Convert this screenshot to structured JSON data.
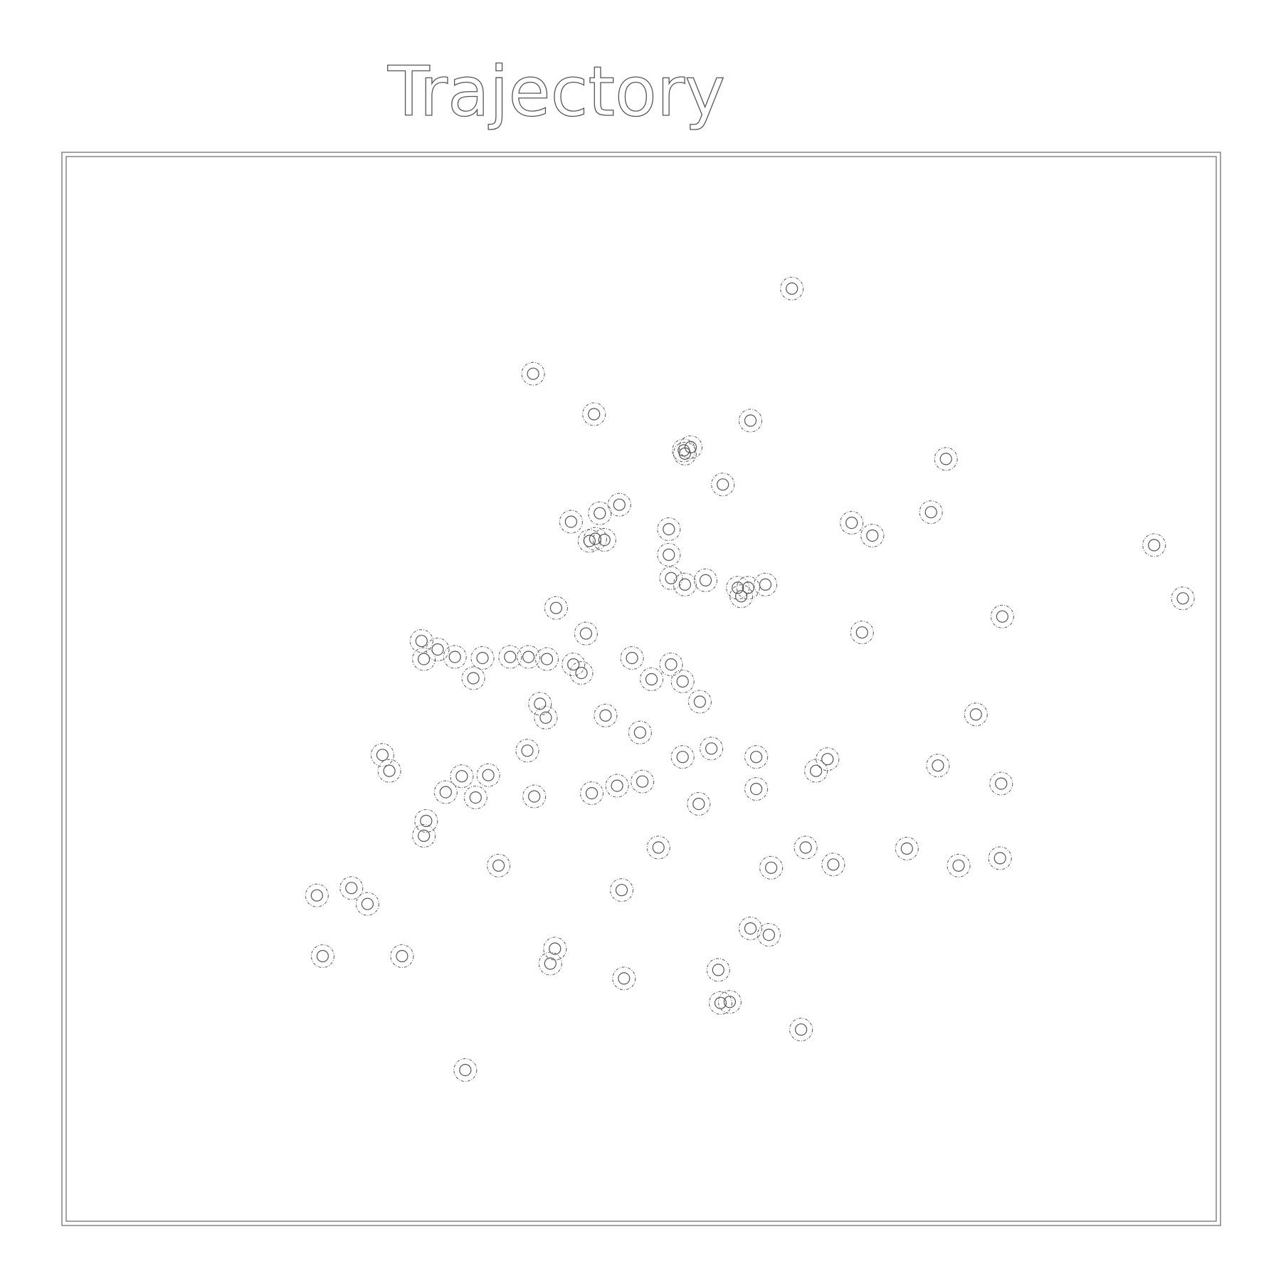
{
  "chart_data": {
    "type": "scatter",
    "title": "Trajectory",
    "xlabel": "",
    "ylabel": "",
    "xlim": [
      0,
      100
    ],
    "ylim": [
      0,
      100
    ],
    "grid": false,
    "legend": "none",
    "axes_ticks_visible": false,
    "colors": {
      "marker_stroke": "#666666",
      "frame": "#666666",
      "background": "#ffffff"
    },
    "points": [
      {
        "x": 63.1,
        "y": 87.6
      },
      {
        "x": 40.6,
        "y": 79.6
      },
      {
        "x": 45.9,
        "y": 75.8
      },
      {
        "x": 59.5,
        "y": 75.2
      },
      {
        "x": 53.7,
        "y": 72.4
      },
      {
        "x": 54.3,
        "y": 72.7
      },
      {
        "x": 53.8,
        "y": 72.1
      },
      {
        "x": 76.5,
        "y": 71.6
      },
      {
        "x": 57.1,
        "y": 69.2
      },
      {
        "x": 48.1,
        "y": 67.3
      },
      {
        "x": 43.9,
        "y": 65.7
      },
      {
        "x": 46.4,
        "y": 66.5
      },
      {
        "x": 46.0,
        "y": 64.1
      },
      {
        "x": 45.5,
        "y": 63.9
      },
      {
        "x": 46.8,
        "y": 64.0
      },
      {
        "x": 52.4,
        "y": 65.0
      },
      {
        "x": 52.4,
        "y": 62.6
      },
      {
        "x": 68.3,
        "y": 65.6
      },
      {
        "x": 70.1,
        "y": 64.4
      },
      {
        "x": 75.2,
        "y": 66.6
      },
      {
        "x": 94.6,
        "y": 63.5
      },
      {
        "x": 52.6,
        "y": 60.4
      },
      {
        "x": 53.8,
        "y": 59.8
      },
      {
        "x": 55.6,
        "y": 60.2
      },
      {
        "x": 59.3,
        "y": 59.5
      },
      {
        "x": 58.7,
        "y": 58.7
      },
      {
        "x": 58.4,
        "y": 59.5
      },
      {
        "x": 60.8,
        "y": 59.8
      },
      {
        "x": 42.6,
        "y": 57.6
      },
      {
        "x": 97.1,
        "y": 58.5
      },
      {
        "x": 81.4,
        "y": 56.8
      },
      {
        "x": 45.2,
        "y": 55.2
      },
      {
        "x": 69.2,
        "y": 55.3
      },
      {
        "x": 31.1,
        "y": 52.8
      },
      {
        "x": 32.3,
        "y": 53.7
      },
      {
        "x": 30.9,
        "y": 54.5
      },
      {
        "x": 33.8,
        "y": 53.0
      },
      {
        "x": 36.2,
        "y": 52.9
      },
      {
        "x": 35.4,
        "y": 51.0
      },
      {
        "x": 38.6,
        "y": 53.0
      },
      {
        "x": 40.2,
        "y": 53.0
      },
      {
        "x": 41.8,
        "y": 52.8
      },
      {
        "x": 44.1,
        "y": 52.3
      },
      {
        "x": 44.8,
        "y": 51.5
      },
      {
        "x": 49.2,
        "y": 52.9
      },
      {
        "x": 52.6,
        "y": 52.3
      },
      {
        "x": 50.9,
        "y": 50.9
      },
      {
        "x": 53.6,
        "y": 50.7
      },
      {
        "x": 55.1,
        "y": 48.8
      },
      {
        "x": 41.2,
        "y": 48.6
      },
      {
        "x": 41.7,
        "y": 47.3
      },
      {
        "x": 46.9,
        "y": 47.5
      },
      {
        "x": 79.1,
        "y": 47.6
      },
      {
        "x": 49.9,
        "y": 45.9
      },
      {
        "x": 40.1,
        "y": 44.2
      },
      {
        "x": 56.1,
        "y": 44.4
      },
      {
        "x": 27.5,
        "y": 43.8
      },
      {
        "x": 28.1,
        "y": 42.3
      },
      {
        "x": 53.6,
        "y": 43.6
      },
      {
        "x": 60.0,
        "y": 43.6
      },
      {
        "x": 66.2,
        "y": 43.4
      },
      {
        "x": 65.2,
        "y": 42.3
      },
      {
        "x": 75.8,
        "y": 42.8
      },
      {
        "x": 36.7,
        "y": 41.9
      },
      {
        "x": 34.4,
        "y": 41.8
      },
      {
        "x": 33.0,
        "y": 40.3
      },
      {
        "x": 35.6,
        "y": 39.8
      },
      {
        "x": 40.7,
        "y": 39.9
      },
      {
        "x": 45.7,
        "y": 40.2
      },
      {
        "x": 47.9,
        "y": 40.9
      },
      {
        "x": 50.1,
        "y": 41.3
      },
      {
        "x": 60.0,
        "y": 40.6
      },
      {
        "x": 81.3,
        "y": 41.1
      },
      {
        "x": 55.0,
        "y": 39.2
      },
      {
        "x": 31.3,
        "y": 37.6
      },
      {
        "x": 31.1,
        "y": 36.2
      },
      {
        "x": 51.5,
        "y": 35.1
      },
      {
        "x": 64.3,
        "y": 35.1
      },
      {
        "x": 73.1,
        "y": 35.0
      },
      {
        "x": 37.6,
        "y": 33.4
      },
      {
        "x": 61.3,
        "y": 33.2
      },
      {
        "x": 66.7,
        "y": 33.5
      },
      {
        "x": 77.6,
        "y": 33.4
      },
      {
        "x": 81.2,
        "y": 34.1
      },
      {
        "x": 21.8,
        "y": 30.6
      },
      {
        "x": 24.8,
        "y": 31.3
      },
      {
        "x": 26.2,
        "y": 29.8
      },
      {
        "x": 48.3,
        "y": 31.1
      },
      {
        "x": 59.5,
        "y": 27.5
      },
      {
        "x": 61.1,
        "y": 26.9
      },
      {
        "x": 42.5,
        "y": 25.6
      },
      {
        "x": 22.3,
        "y": 24.9
      },
      {
        "x": 29.2,
        "y": 24.9
      },
      {
        "x": 42.1,
        "y": 24.2
      },
      {
        "x": 56.7,
        "y": 23.6
      },
      {
        "x": 48.5,
        "y": 22.8
      },
      {
        "x": 56.9,
        "y": 20.5
      },
      {
        "x": 57.7,
        "y": 20.6
      },
      {
        "x": 63.9,
        "y": 18.0
      },
      {
        "x": 34.7,
        "y": 14.2
      }
    ]
  }
}
